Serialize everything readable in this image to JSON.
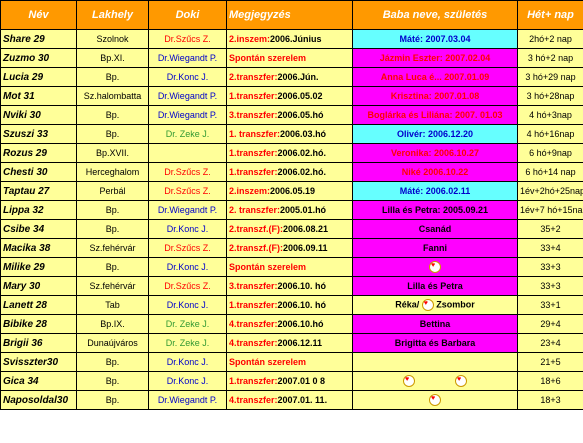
{
  "headers": {
    "name": "Név",
    "place": "Lakhely",
    "doctor": "Doki",
    "notes": "Megjegyzés",
    "baby": "Baba neve, születés",
    "weeks": "Hét+ nap"
  },
  "rows": [
    {
      "name": "Share 29",
      "place": "Szolnok",
      "doctor": "Dr.Szűcs Z.",
      "doc_color": "red",
      "note_prefix": "2.inszem:",
      "note_rest": "2006.Június",
      "baby": "Máté: 2007.03.04",
      "baby_style": "cyan",
      "age": "2hó+2 nap"
    },
    {
      "name": "Zuzmo 30",
      "place": "Bp.XI.",
      "doctor": "Dr.Wiegandt P.",
      "doc_color": "blue",
      "note_prefix": "Spontán szerelem",
      "note_rest": "",
      "baby": "Jázmin Eszter: 2007.02.04",
      "baby_style": "magenta-red",
      "age": "3 hó+2 nap"
    },
    {
      "name": "Lucia 29",
      "place": "Bp.",
      "doctor": "Dr.Konc J.",
      "doc_color": "blue",
      "note_prefix": "2.transzfer:",
      "note_rest": "2006.Jún.",
      "baby": "Anna Luca é... 2007.01.09",
      "baby_style": "magenta-red",
      "age": "3 hó+29 nap"
    },
    {
      "name": "Mot 31",
      "place": "Sz.halombatta",
      "doctor": "Dr.Wiegandt P.",
      "doc_color": "blue",
      "note_prefix": "1.transzfer:",
      "note_rest": "2006.05.02",
      "baby": "Krisztina: 2007.01.08",
      "baby_style": "magenta-red",
      "age": "3 hó+28nap"
    },
    {
      "name": "Nviki 30",
      "place": "Bp.",
      "doctor": "Dr.Wiegandt P.",
      "doc_color": "blue",
      "note_prefix": "3.transzfer:",
      "note_rest": "2006.05.hó",
      "baby": "Boglárka és Liliána: 2007. 01.03",
      "baby_style": "magenta-red",
      "age": "4 hó+3nap"
    },
    {
      "name": "Szuszi 33",
      "place": "Bp.",
      "doctor": "Dr. Zeke J.",
      "doc_color": "green",
      "note_prefix": "1. transzfer:",
      "note_rest": "2006.03.hó",
      "baby": "Olivér: 2006.12.20",
      "baby_style": "cyan",
      "age": "4 hó+16nap"
    },
    {
      "name": "Rozus 29",
      "place": "Bp.XVII.",
      "doctor": "",
      "doc_color": "blue",
      "note_prefix": "1.transzfer:",
      "note_rest": "2006.02.hó.",
      "baby": "Veronika: 2006.10.27",
      "baby_style": "magenta-red",
      "age": "6 hó+9nap"
    },
    {
      "name": "Chesti 30",
      "place": "Herceghalom",
      "doctor": "Dr.Szűcs Z.",
      "doc_color": "red",
      "note_prefix": "1.transzfer:",
      "note_rest": "2006.02.hó.",
      "baby": "Niké 2006.10.22",
      "baby_style": "magenta-red",
      "age": "6 hó+14 nap"
    },
    {
      "name": "Taptau 27",
      "place": "Perbál",
      "doctor": "Dr.Szűcs Z.",
      "doc_color": "red",
      "note_prefix": "2.inszem:",
      "note_rest": "2006.05.19",
      "baby": "Máté: 2006.02.11",
      "baby_style": "cyan",
      "age": "1év+2hó+25nap"
    },
    {
      "name": "Lippa 32",
      "place": "Bp.",
      "doctor": "Dr.Wiegandt P.",
      "doc_color": "blue",
      "note_prefix": "2. transzfer:",
      "note_rest": "2005.01.hó",
      "baby": "Lilla és Petra: 2005.09.21",
      "baby_style": "magenta-black",
      "age": "1év+7 hó+15nap"
    },
    {
      "name": "Csibe 34",
      "place": "Bp.",
      "doctor": "Dr.Konc J.",
      "doc_color": "blue",
      "note_prefix": "2.transzf.(F):",
      "note_rest": "2006.08.21",
      "baby": "Csanád",
      "baby_style": "magenta-black",
      "age": "35+2"
    },
    {
      "name": "Macika 38",
      "place": "Sz.fehérvár",
      "doctor": "Dr.Szűcs Z.",
      "doc_color": "red",
      "note_prefix": "2.transzf.(F):",
      "note_rest": "2006.09.11",
      "baby": "Fanni",
      "baby_style": "magenta-black",
      "age": "33+4"
    },
    {
      "name": "Milike 29",
      "place": "Bp.",
      "doctor": "Dr.Konc J.",
      "doc_color": "blue",
      "note_prefix": "Spontán szerelem",
      "note_rest": "",
      "baby": "",
      "baby_style": "magenta-heart",
      "age": "33+3"
    },
    {
      "name": "Mary 30",
      "place": "Sz.fehérvár",
      "doctor": "Dr.Szűcs Z.",
      "doc_color": "red",
      "note_prefix": "3.transzfer:",
      "note_rest": "2006.10. hó",
      "baby": "Lilla és Petra",
      "baby_style": "magenta-black",
      "age": "33+3"
    },
    {
      "name": "Lanett 28",
      "place": "Tab",
      "doctor": "Dr.Konc J.",
      "doc_color": "blue",
      "note_prefix": "1.transzfer:",
      "note_rest": "2006.10. hó",
      "baby": "Réka/ Zsombor",
      "baby_style": "yellow-heart",
      "age": "33+1"
    },
    {
      "name": "Bibike 28",
      "place": "Bp.IX.",
      "doctor": "Dr. Zeke J.",
      "doc_color": "green",
      "note_prefix": "4.transzfer:",
      "note_rest": "2006.10.hó",
      "baby": "Bettina",
      "baby_style": "magenta-black",
      "age": "29+4"
    },
    {
      "name": "Brigii 36",
      "place": "Dunaújváros",
      "doctor": "Dr. Zeke J.",
      "doc_color": "green",
      "note_prefix": "4.transzfer:",
      "note_rest": "2006.12.11",
      "baby": "Brigitta és Barbara",
      "baby_style": "magenta-black",
      "age": "23+4"
    },
    {
      "name": "Svisszter30",
      "place": "Bp.",
      "doctor": "Dr.Konc J.",
      "doc_color": "blue",
      "note_prefix": "Spontán szerelem",
      "note_rest": "",
      "baby": "",
      "baby_style": "yellow",
      "age": "21+5"
    },
    {
      "name": "Gica 34",
      "place": "Bp.",
      "doctor": "Dr.Konc J.",
      "doc_color": "blue",
      "note_prefix": "1.transzfer:",
      "note_rest": "2007.01 0 8",
      "baby": "",
      "baby_style": "yellow-2hearts",
      "age": "18+6"
    },
    {
      "name": "Naposoldal30",
      "place": "Bp.",
      "doctor": "Dr.Wiegandt P.",
      "doc_color": "blue",
      "note_prefix": "4.transzfer:",
      "note_rest": "2007.01. 11.",
      "baby": "",
      "baby_style": "yellow-heart-only",
      "age": "18+3"
    }
  ]
}
